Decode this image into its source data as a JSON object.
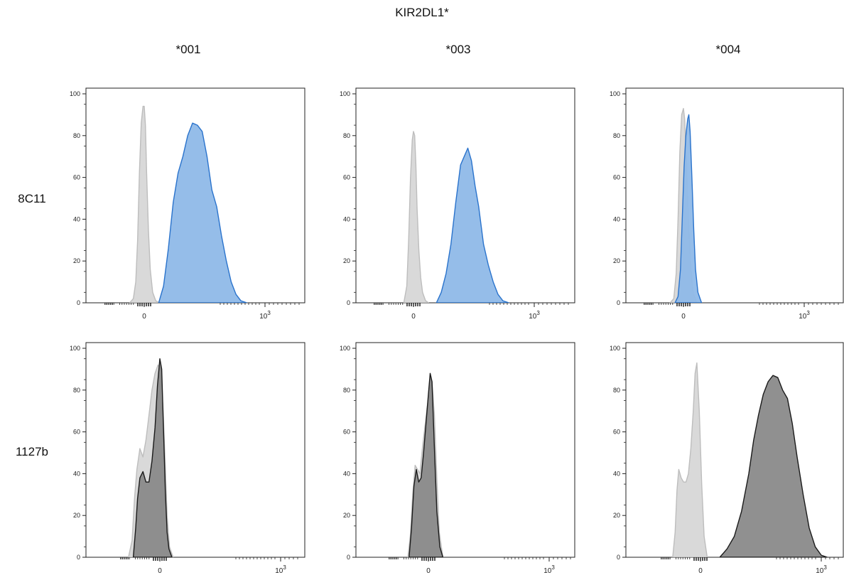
{
  "figure": {
    "title": "KIR2DL1*",
    "columns": [
      "*001",
      "*003",
      "*004"
    ],
    "rows": [
      "8C11",
      "1127b"
    ]
  },
  "colors": {
    "control_fill": "#d9d9d9",
    "control_stroke": "#bdbdbd",
    "blue_fill": "#8fb9e8",
    "blue_stroke": "#2a73cc",
    "dark_fill": "#8a8a8a",
    "dark_stroke": "#1a1a1a"
  },
  "chart_data": [
    {
      "type": "area",
      "row": "8C11",
      "column": "*001",
      "ylim": [
        0,
        100
      ],
      "yticks": [
        0,
        20,
        40,
        60,
        80,
        100
      ],
      "xticks": [
        {
          "value": 0,
          "label": "0"
        },
        {
          "value": 1000,
          "label": "10^3"
        }
      ],
      "series": [
        {
          "role": "control",
          "x": [
            -120,
            -90,
            -70,
            -55,
            -40,
            -25,
            -10,
            0,
            10,
            20,
            35,
            50,
            70,
            95,
            125
          ],
          "y": [
            0,
            2,
            10,
            30,
            62,
            86,
            94,
            94,
            85,
            62,
            35,
            16,
            5,
            1,
            0
          ]
        },
        {
          "role": "stained",
          "x": [
            120,
            160,
            200,
            240,
            280,
            320,
            360,
            400,
            440,
            480,
            520,
            560,
            600,
            640,
            680,
            720,
            760,
            800,
            850
          ],
          "y": [
            0,
            8,
            26,
            48,
            62,
            70,
            80,
            86,
            85,
            82,
            70,
            54,
            46,
            32,
            20,
            10,
            4,
            1,
            0
          ]
        }
      ]
    },
    {
      "type": "area",
      "row": "8C11",
      "column": "*003",
      "ylim": [
        0,
        100
      ],
      "yticks": [
        0,
        20,
        40,
        60,
        80,
        100
      ],
      "xticks": [
        {
          "value": 0,
          "label": "0"
        },
        {
          "value": 1000,
          "label": "10^3"
        }
      ],
      "series": [
        {
          "role": "control",
          "x": [
            -80,
            -55,
            -40,
            -25,
            -10,
            0,
            10,
            20,
            30,
            45,
            60,
            75,
            100,
            125
          ],
          "y": [
            0,
            8,
            30,
            60,
            78,
            82,
            80,
            66,
            45,
            25,
            12,
            5,
            1,
            0
          ]
        },
        {
          "role": "stained",
          "x": [
            190,
            230,
            270,
            310,
            350,
            390,
            420,
            450,
            480,
            510,
            540,
            580,
            620,
            660,
            700,
            740,
            790
          ],
          "y": [
            0,
            5,
            14,
            28,
            48,
            66,
            70,
            74,
            68,
            56,
            46,
            28,
            18,
            10,
            4,
            1,
            0
          ]
        }
      ]
    },
    {
      "type": "area",
      "row": "8C11",
      "column": "*004",
      "ylim": [
        0,
        100
      ],
      "yticks": [
        0,
        20,
        40,
        60,
        80,
        100
      ],
      "xticks": [
        {
          "value": 0,
          "label": "0"
        },
        {
          "value": 1000,
          "label": "10^3"
        }
      ],
      "series": [
        {
          "role": "control",
          "x": [
            -110,
            -80,
            -60,
            -45,
            -30,
            -15,
            0,
            10,
            25,
            40,
            60,
            80,
            110
          ],
          "y": [
            0,
            2,
            14,
            40,
            72,
            90,
            93,
            88,
            68,
            42,
            18,
            5,
            0
          ]
        },
        {
          "role": "stained",
          "x": [
            -70,
            -45,
            -25,
            -10,
            5,
            20,
            35,
            45,
            55,
            70,
            85,
            100,
            120,
            150
          ],
          "y": [
            0,
            3,
            16,
            40,
            65,
            80,
            88,
            90,
            82,
            60,
            35,
            16,
            5,
            0
          ]
        }
      ]
    },
    {
      "type": "area",
      "row": "1127b",
      "column": "*001",
      "ylim": [
        0,
        100
      ],
      "yticks": [
        0,
        20,
        40,
        60,
        80,
        100
      ],
      "xticks": [
        {
          "value": 0,
          "label": "0"
        },
        {
          "value": 1000,
          "label": "10^3"
        }
      ],
      "series": [
        {
          "role": "control",
          "x": [
            -260,
            -230,
            -210,
            -190,
            -165,
            -140,
            -115,
            -90,
            -65,
            -40,
            -15,
            5,
            25,
            45,
            60,
            80,
            110
          ],
          "y": [
            0,
            8,
            28,
            42,
            52,
            48,
            56,
            68,
            80,
            88,
            92,
            90,
            72,
            44,
            20,
            5,
            0
          ]
        },
        {
          "role": "stained",
          "x": [
            -220,
            -200,
            -185,
            -165,
            -140,
            -115,
            -90,
            -65,
            -40,
            -20,
            0,
            15,
            30,
            45,
            60,
            75,
            100
          ],
          "y": [
            0,
            14,
            28,
            38,
            41,
            36,
            36,
            46,
            62,
            82,
            95,
            90,
            62,
            32,
            12,
            4,
            0
          ]
        }
      ]
    },
    {
      "type": "area",
      "row": "1127b",
      "column": "*003",
      "ylim": [
        0,
        100
      ],
      "yticks": [
        0,
        20,
        40,
        60,
        80,
        100
      ],
      "xticks": [
        {
          "value": 0,
          "label": "0"
        },
        {
          "value": 1000,
          "label": "10^3"
        }
      ],
      "series": [
        {
          "role": "control",
          "x": [
            -170,
            -150,
            -130,
            -110,
            -90,
            -70,
            -50,
            -30,
            -10,
            10,
            30,
            50,
            70,
            90,
            120
          ],
          "y": [
            0,
            10,
            30,
            44,
            42,
            40,
            52,
            62,
            72,
            80,
            84,
            68,
            38,
            12,
            0
          ]
        },
        {
          "role": "stained",
          "x": [
            -160,
            -140,
            -120,
            -100,
            -80,
            -60,
            -40,
            -20,
            0,
            15,
            30,
            50,
            70,
            95,
            120
          ],
          "y": [
            0,
            14,
            34,
            42,
            36,
            38,
            50,
            64,
            78,
            88,
            84,
            52,
            22,
            5,
            0
          ]
        }
      ]
    },
    {
      "type": "area",
      "row": "1127b",
      "column": "*004",
      "ylim": [
        0,
        100
      ],
      "yticks": [
        0,
        20,
        40,
        60,
        80,
        100
      ],
      "xticks": [
        {
          "value": 0,
          "label": "0"
        },
        {
          "value": 1000,
          "label": "10^3"
        }
      ],
      "series": [
        {
          "role": "control",
          "x": [
            -230,
            -210,
            -195,
            -180,
            -160,
            -140,
            -120,
            -100,
            -80,
            -60,
            -45,
            -30,
            -10,
            10,
            30,
            55
          ],
          "y": [
            0,
            12,
            32,
            42,
            38,
            36,
            36,
            40,
            52,
            70,
            88,
            93,
            70,
            35,
            10,
            0
          ]
        },
        {
          "role": "stained",
          "x": [
            160,
            220,
            280,
            340,
            400,
            440,
            480,
            520,
            560,
            600,
            640,
            680,
            720,
            760,
            800,
            850,
            900,
            950,
            1000,
            1050
          ],
          "y": [
            0,
            4,
            10,
            22,
            40,
            56,
            68,
            78,
            84,
            87,
            86,
            80,
            76,
            64,
            48,
            30,
            14,
            5,
            1,
            0
          ]
        }
      ]
    }
  ]
}
